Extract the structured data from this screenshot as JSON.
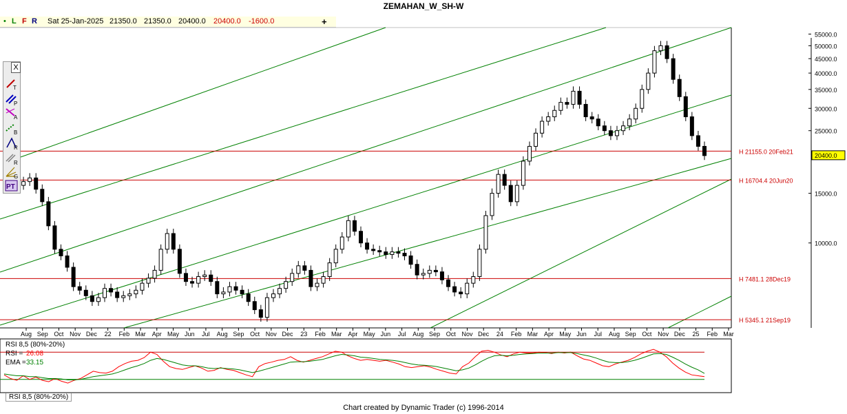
{
  "title": "ZEMAHAN_W_SH-W",
  "infobar": {
    "dot": "•",
    "l": "L",
    "f": "F",
    "r": "R",
    "date": "Sat 25-Jan-2025",
    "open": "21350.0",
    "high": "21350.0",
    "low": "20400.0",
    "close": "20400.0",
    "change": "-1600.0"
  },
  "plus_label": "+",
  "toolbox": {
    "close_label": "X",
    "tools": [
      "T",
      "P",
      "A",
      "B",
      "R",
      "R",
      "G",
      "PT"
    ]
  },
  "colors": {
    "up": "#ffffff",
    "down": "#000000",
    "channel": "#008000",
    "hline": "#cc0000",
    "rsi": "#ff0000",
    "ema": "#008000",
    "axis": "#000000"
  },
  "chart_data": [
    {
      "type": "candlestick",
      "title": "ZEMAHAN_W_SH-W",
      "y_scale": "log",
      "ylim": [
        5000,
        58000
      ],
      "y_ticks": [
        "55000.0",
        "50000.0",
        "45000.0",
        "40000.0",
        "35000.0",
        "30000.0",
        "25000.0",
        "15000.0",
        "10000.0"
      ],
      "y_tick_values": [
        55000,
        50000,
        45000,
        40000,
        35000,
        30000,
        25000,
        15000,
        10000
      ],
      "last_price_label": "20400.0",
      "last_price": 20400,
      "x_labels": [
        "Aug",
        "Sep",
        "Oct",
        "Nov",
        "Dec",
        "22",
        "Feb",
        "Mar",
        "Apr",
        "May",
        "Jun",
        "Jul",
        "Aug",
        "Sep",
        "Oct",
        "Nov",
        "Dec",
        "23",
        "Feb",
        "Mar",
        "Apr",
        "May",
        "Jun",
        "Jul",
        "Aug",
        "Sep",
        "Oct",
        "Nov",
        "Dec",
        "24",
        "Feb",
        "Mar",
        "Apr",
        "May",
        "Jun",
        "Jul",
        "Aug",
        "Sep",
        "Oct",
        "Nov",
        "Dec",
        "25",
        "Feb",
        "Mar"
      ],
      "horizontal_levels": [
        {
          "label": "H 21155.0 20Feb21",
          "value": 21155
        },
        {
          "label": "H 16704.4 20Jun20",
          "value": 16704.4
        },
        {
          "label": "H 7481.1 28Dec19",
          "value": 7481.1
        },
        {
          "label": "H 5345.1 21Sep19",
          "value": 5345.1
        }
      ],
      "series_close": [
        16000,
        16500,
        17000,
        15500,
        14000,
        11500,
        9500,
        9000,
        8200,
        7000,
        6800,
        6500,
        6200,
        6400,
        6900,
        6700,
        6400,
        6500,
        6600,
        6800,
        7200,
        7500,
        8000,
        9500,
        10800,
        9500,
        7800,
        7300,
        7200,
        7600,
        7700,
        7300,
        6600,
        6700,
        7000,
        6800,
        6600,
        6200,
        5800,
        5450,
        6400,
        6600,
        6900,
        7300,
        7800,
        8300,
        8000,
        7000,
        7200,
        7600,
        8500,
        9500,
        10500,
        12000,
        11000,
        10000,
        9500,
        9400,
        9300,
        9100,
        9300,
        9200,
        9000,
        8400,
        7700,
        7800,
        8000,
        7900,
        7400,
        7000,
        6700,
        6600,
        7200,
        7600,
        9500,
        12500,
        15000,
        17500,
        16000,
        14000,
        16000,
        19500,
        22000,
        24500,
        27000,
        28000,
        29500,
        31500,
        31000,
        34500,
        31000,
        28000,
        27500,
        26000,
        25000,
        24000,
        25000,
        26000,
        27500,
        30000,
        35000,
        40000,
        48000,
        50000,
        45000,
        38000,
        33000,
        28000,
        24000,
        22000,
        20400
      ]
    },
    {
      "type": "line",
      "title": "RSI 8,5 (80%-20%)",
      "legend": [
        {
          "label": "RSI =",
          "value": "26.08"
        },
        {
          "label": "EMA =",
          "value": "33.15"
        }
      ],
      "tab_label": "RSI 8,5 (80%-20%)",
      "levels": [
        80,
        20
      ],
      "series": [
        {
          "name": "RSI",
          "values": [
            30,
            22,
            18,
            28,
            20,
            25,
            18,
            15,
            22,
            16,
            12,
            18,
            22,
            30,
            38,
            35,
            34,
            38,
            48,
            55,
            60,
            62,
            68,
            80,
            75,
            60,
            48,
            44,
            42,
            46,
            50,
            45,
            38,
            40,
            46,
            42,
            40,
            35,
            30,
            26,
            48,
            55,
            58,
            62,
            64,
            70,
            62,
            58,
            62,
            66,
            70,
            76,
            82,
            80,
            72,
            66,
            62,
            64,
            62,
            60,
            62,
            58,
            54,
            48,
            46,
            48,
            50,
            47,
            42,
            38,
            34,
            32,
            48,
            56,
            70,
            82,
            84,
            80,
            74,
            70,
            76,
            80,
            78,
            78,
            80,
            79,
            77,
            80,
            78,
            80,
            72,
            65,
            62,
            56,
            50,
            48,
            54,
            58,
            62,
            68,
            76,
            82,
            86,
            80,
            70,
            56,
            45,
            36,
            30,
            28,
            26
          ]
        },
        {
          "name": "EMA",
          "values": [
            32,
            30,
            28,
            28,
            26,
            26,
            24,
            22,
            22,
            21,
            19,
            19,
            20,
            23,
            26,
            28,
            30,
            32,
            36,
            41,
            46,
            50,
            55,
            62,
            66,
            64,
            60,
            56,
            52,
            50,
            50,
            48,
            45,
            44,
            45,
            44,
            43,
            41,
            38,
            35,
            38,
            42,
            46,
            50,
            54,
            58,
            59,
            59,
            60,
            62,
            64,
            68,
            72,
            75,
            74,
            72,
            69,
            68,
            66,
            64,
            63,
            62,
            60,
            57,
            54,
            52,
            51,
            50,
            48,
            45,
            42,
            39,
            41,
            45,
            52,
            60,
            67,
            72,
            73,
            72,
            73,
            75,
            76,
            77,
            78,
            78,
            78,
            79,
            79,
            79,
            77,
            74,
            71,
            67,
            62,
            58,
            57,
            57,
            59,
            62,
            66,
            71,
            76,
            77,
            75,
            69,
            62,
            54,
            47,
            41,
            33.15
          ]
        }
      ]
    }
  ],
  "credit": "Chart created by Dynamic Trader  (c)  1996-2014"
}
